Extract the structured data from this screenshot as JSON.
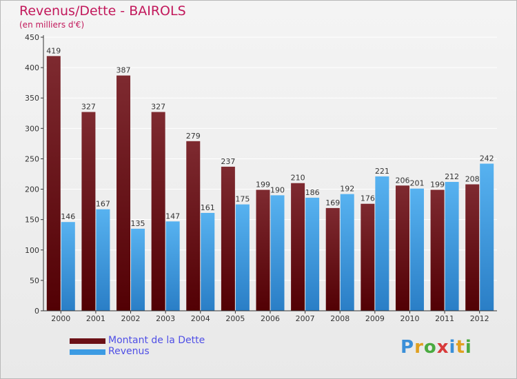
{
  "header": {
    "title": "Revenus/Dette - BAIROLS",
    "subtitle": "(en milliers d'€)"
  },
  "legend": {
    "items": [
      {
        "label": "Montant de la Dette",
        "color": "#6b1016"
      },
      {
        "label": "Revenus",
        "color": "#3c9be3"
      }
    ]
  },
  "logo": {
    "letters": [
      {
        "ch": "P",
        "color": "#3a8fd8"
      },
      {
        "ch": "r",
        "color": "#e0a020"
      },
      {
        "ch": "o",
        "color": "#4aaa40"
      },
      {
        "ch": "x",
        "color": "#d83a3a"
      },
      {
        "ch": "i",
        "color": "#3a8fd8"
      },
      {
        "ch": "t",
        "color": "#e0a020"
      },
      {
        "ch": "i",
        "color": "#4aaa40"
      }
    ]
  },
  "chart_data": {
    "type": "bar",
    "title": "Revenus/Dette - BAIROLS",
    "subtitle": "(en milliers d'€)",
    "categories": [
      "2000",
      "2001",
      "2002",
      "2003",
      "2004",
      "2005",
      "2006",
      "2007",
      "2008",
      "2009",
      "2010",
      "2011",
      "2012"
    ],
    "series": [
      {
        "name": "Montant de la Dette",
        "color": "#6b1016",
        "values": [
          419,
          327,
          387,
          327,
          279,
          237,
          199,
          210,
          169,
          176,
          206,
          199,
          208
        ]
      },
      {
        "name": "Revenus",
        "color": "#3c9be3",
        "values": [
          146,
          167,
          135,
          147,
          161,
          175,
          190,
          186,
          192,
          221,
          201,
          212,
          242
        ]
      }
    ],
    "ylim": [
      0,
      450
    ],
    "yticks": [
      0,
      50,
      100,
      150,
      200,
      250,
      300,
      350,
      400,
      450
    ],
    "grid": true,
    "legend_position": "bottom-left"
  }
}
